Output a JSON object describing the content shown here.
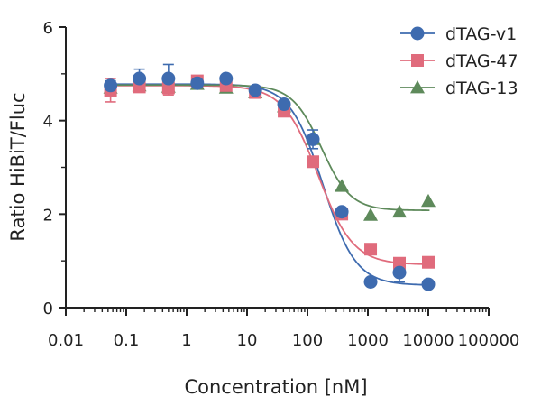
{
  "chart_data": {
    "type": "scatter",
    "xscale": "log",
    "xlabel": "Concentration [nM]",
    "ylabel": "Ratio HiBiT/Fluc",
    "xlim": [
      0.01,
      100000
    ],
    "ylim": [
      0,
      6
    ],
    "xticks": [
      0.01,
      0.1,
      1,
      10,
      100,
      1000,
      10000,
      100000
    ],
    "xtick_labels": [
      "0.01",
      "0.1",
      "1",
      "10",
      "100",
      "1000",
      "10000",
      "100000"
    ],
    "yticks": [
      0,
      2,
      4,
      6
    ],
    "ytick_labels": [
      "0",
      "2",
      "4",
      "6"
    ],
    "legend_position": "top-right",
    "series": [
      {
        "name": "dTAG-v1",
        "marker": "circle",
        "color": "#3E6BAF",
        "x": [
          0.055,
          0.165,
          0.5,
          1.5,
          4.5,
          13.7,
          41,
          123,
          370,
          1110,
          3330,
          10000
        ],
        "y": [
          4.75,
          4.9,
          4.9,
          4.8,
          4.9,
          4.65,
          4.35,
          3.6,
          2.05,
          0.55,
          0.75,
          0.5
        ],
        "err": [
          0.1,
          0.2,
          0.3,
          0.0,
          0.0,
          0.0,
          0.0,
          0.2,
          0.0,
          0.0,
          0.2,
          0.0
        ],
        "fit": {
          "top": 4.78,
          "bottom": 0.48,
          "ec50": 180,
          "hill": 1.6
        }
      },
      {
        "name": "dTAG-47",
        "marker": "square",
        "color": "#E06B7C",
        "x": [
          0.055,
          0.165,
          0.5,
          1.5,
          4.5,
          13.7,
          41,
          123,
          370,
          1110,
          3330,
          10000
        ],
        "y": [
          4.65,
          4.72,
          4.7,
          4.85,
          4.75,
          4.6,
          4.2,
          3.12,
          2.0,
          1.25,
          0.95,
          0.97
        ],
        "err": [
          0.25,
          0.0,
          0.15,
          0.0,
          0.0,
          0.0,
          0.0,
          0.0,
          0.0,
          0.0,
          0.0,
          0.0
        ],
        "fit": {
          "top": 4.75,
          "bottom": 0.92,
          "ec50": 150,
          "hill": 1.5
        }
      },
      {
        "name": "dTAG-13",
        "marker": "triangle",
        "color": "#5E8A5B",
        "x": [
          0.055,
          0.165,
          0.5,
          1.5,
          4.5,
          13.7,
          41,
          123,
          370,
          1110,
          3330,
          10000
        ],
        "y": [
          4.7,
          4.75,
          4.72,
          4.78,
          4.7,
          4.6,
          4.3,
          3.6,
          2.6,
          1.98,
          2.05,
          2.28
        ],
        "err": [
          0.0,
          0.0,
          0.0,
          0.0,
          0.0,
          0.0,
          0.0,
          0.0,
          0.0,
          0.0,
          0.0,
          0.0
        ],
        "fit": {
          "top": 4.76,
          "bottom": 2.08,
          "ec50": 170,
          "hill": 1.8
        }
      }
    ]
  }
}
